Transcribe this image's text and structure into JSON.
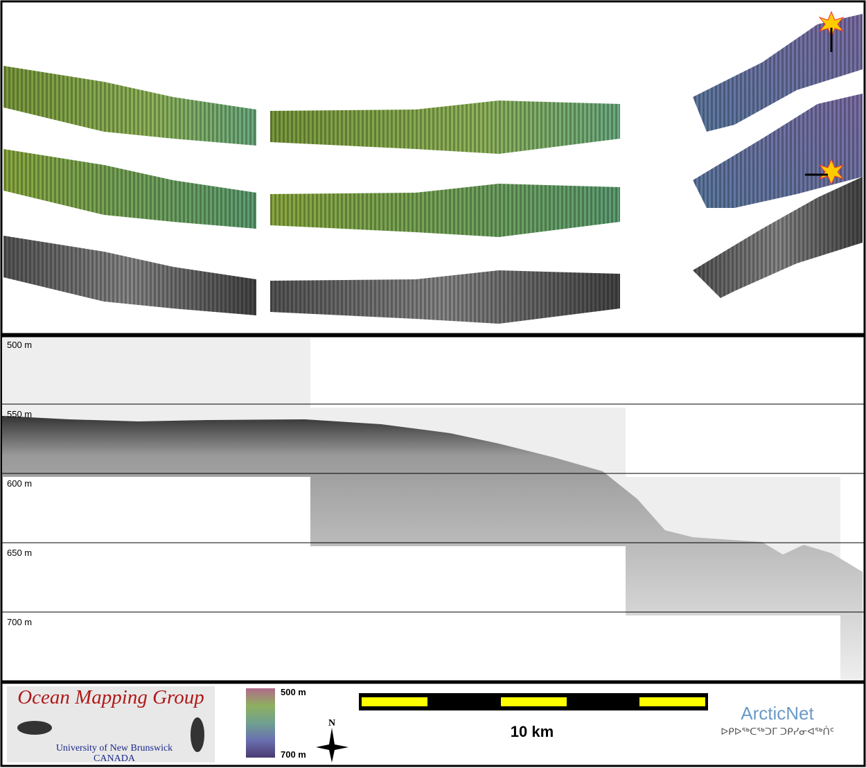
{
  "profile": {
    "depth_labels": [
      "500 m",
      "550 m",
      "600 m",
      "650 m",
      "700 m"
    ]
  },
  "footer": {
    "logo_title": "Ocean Mapping Group",
    "logo_university": "University of New Brunswick",
    "logo_country": "CANADA",
    "colorbar_top": "500 m",
    "colorbar_bottom": "700 m",
    "north": "N",
    "scale": "10 km",
    "partner": "ArcticNet",
    "partner_syllabics": "ᐅᑭᐅᖅᑕᖅᑐᒥ ᑐᑭᓯᓂᐊᖅᑏᑦ"
  }
}
